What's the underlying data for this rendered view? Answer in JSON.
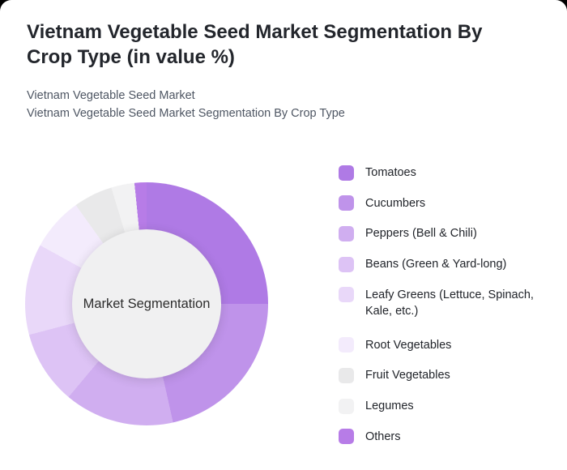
{
  "header": {
    "title_line1": "Vietnam Vegetable Seed Market Segmentation By",
    "title_line2": "Crop Type (in value %)",
    "subtitle1": "Vietnam Vegetable Seed Market",
    "subtitle2": "Vietnam Vegetable Seed Market Segmentation By Crop Type"
  },
  "chart_data": {
    "type": "pie",
    "variant": "donut",
    "title": "Vietnam Vegetable Seed Market Segmentation By Crop Type (in value %)",
    "center_label": "Market Segmentation",
    "unit": "%",
    "start_angle_deg": 0,
    "direction": "clockwise",
    "legend_position": "right",
    "data_labels_shown": false,
    "categories": [
      "Tomatoes",
      "Cucumbers",
      "Peppers (Bell & Chili)",
      "Beans (Green & Yard-long)",
      "Leafy Greens (Lettuce, Spinach, Kale, etc.)",
      "Root Vegetables",
      "Fruit Vegetables",
      "Legumes",
      "Others"
    ],
    "values": [
      25.0,
      21.5,
      14.6,
      9.8,
      12.1,
      7.1,
      5.2,
      3.1,
      1.6
    ],
    "colors": [
      "#af7ae5",
      "#bf93ea",
      "#d0aef0",
      "#ddc3f5",
      "#e9d8f9",
      "#f3ebfc",
      "#e9e9ea",
      "#f2f2f3",
      "#b77ce7"
    ]
  },
  "colors": {
    "page_background": "#000000",
    "card_background": "#ffffff",
    "donut_hole": "#f0f0f1",
    "title_text": "#23262c",
    "subtitle_text": "#4e5663",
    "legend_text": "#21242a"
  }
}
